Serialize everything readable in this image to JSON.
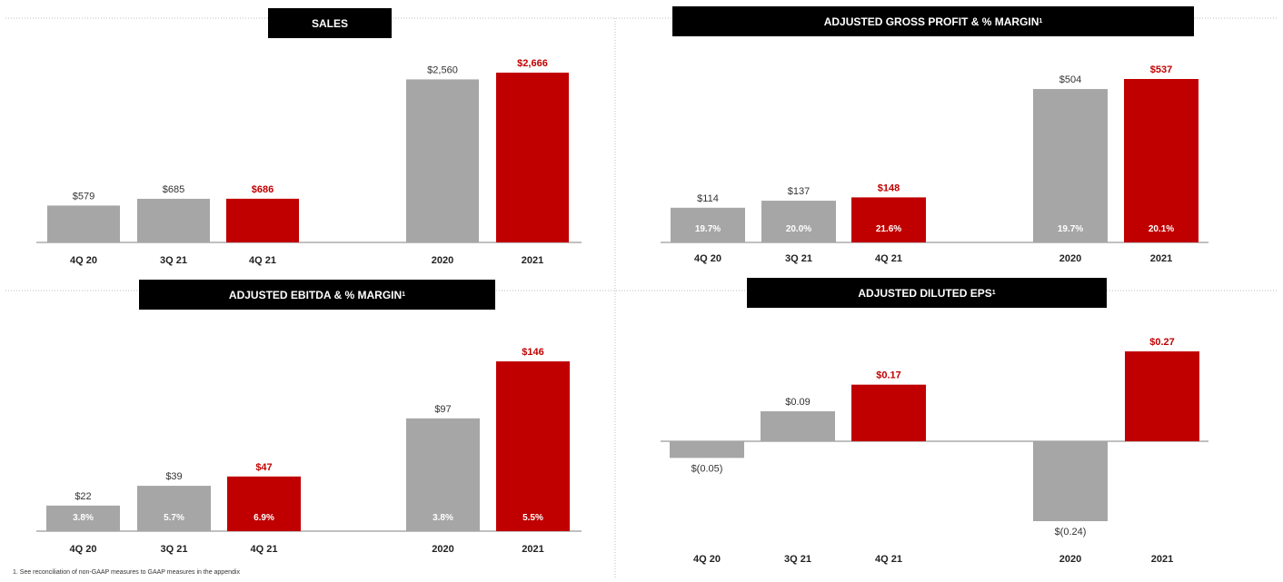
{
  "colors": {
    "gray": "#a6a6a6",
    "red": "#c00000",
    "title_bg": "#000000",
    "title_fg": "#ffffff",
    "axis": "#9a9a9a",
    "label": "#333333"
  },
  "footnote": "1.   See reconciliation of non-GAAP measures to GAAP measures in the appendix",
  "chart_data": [
    {
      "type": "bar",
      "title": "SALES",
      "categories": [
        "4Q 20",
        "3Q 21",
        "4Q 21",
        "2020",
        "2021"
      ],
      "values": [
        579,
        685,
        686,
        2560,
        2666
      ],
      "value_labels": [
        "$579",
        "$685",
        "$686",
        "$2,560",
        "$2,666"
      ],
      "highlight": [
        false,
        false,
        true,
        false,
        true
      ],
      "groups": [
        [
          0,
          1,
          2
        ],
        [
          3,
          4
        ]
      ]
    },
    {
      "type": "bar",
      "title": "ADJUSTED GROSS PROFIT & % MARGIN",
      "title_sup": "1",
      "categories": [
        "4Q 20",
        "3Q 21",
        "4Q 21",
        "2020",
        "2021"
      ],
      "values": [
        114,
        137,
        148,
        504,
        537
      ],
      "value_labels": [
        "$114",
        "$137",
        "$148",
        "$504",
        "$537"
      ],
      "margins": [
        "19.7%",
        "20.0%",
        "21.6%",
        "19.7%",
        "20.1%"
      ],
      "highlight": [
        false,
        false,
        true,
        false,
        true
      ],
      "groups": [
        [
          0,
          1,
          2
        ],
        [
          3,
          4
        ]
      ]
    },
    {
      "type": "bar",
      "title": "ADJUSTED EBITDA & % MARGIN",
      "title_sup": "1",
      "categories": [
        "4Q 20",
        "3Q 21",
        "4Q 21",
        "2020",
        "2021"
      ],
      "values": [
        22,
        39,
        47,
        97,
        146
      ],
      "value_labels": [
        "$22",
        "$39",
        "$47",
        "$97",
        "$146"
      ],
      "margins": [
        "3.8%",
        "5.7%",
        "6.9%",
        "3.8%",
        "5.5%"
      ],
      "highlight": [
        false,
        false,
        true,
        false,
        true
      ],
      "groups": [
        [
          0,
          1,
          2
        ],
        [
          3,
          4
        ]
      ]
    },
    {
      "type": "bar",
      "title": "ADJUSTED DILUTED EPS",
      "title_sup": "1",
      "categories": [
        "4Q 20",
        "3Q 21",
        "4Q 21",
        "2020",
        "2021"
      ],
      "values": [
        -0.05,
        0.09,
        0.17,
        -0.24,
        0.27
      ],
      "value_labels": [
        "$(0.05)",
        "$0.09",
        "$0.17",
        "$(0.24)",
        "$0.27"
      ],
      "highlight": [
        false,
        false,
        true,
        false,
        true
      ],
      "groups": [
        [
          0,
          1,
          2
        ],
        [
          3,
          4
        ]
      ]
    }
  ]
}
